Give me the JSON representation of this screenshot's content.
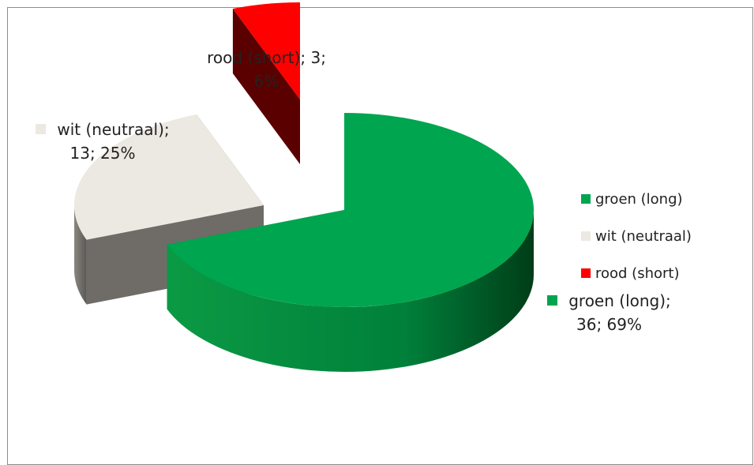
{
  "chart_data": {
    "type": "pie",
    "title": "",
    "three_d": true,
    "exploded": true,
    "legend_position": "right",
    "slices": [
      {
        "category": "groen (long)",
        "value": 36,
        "percent": 69,
        "color": "#00a54f",
        "label_lines": [
          "groen (long);",
          "36; 69%"
        ]
      },
      {
        "category": "wit (neutraal)",
        "value": 13,
        "percent": 25,
        "color": "#ece9e2",
        "label_lines": [
          "wit (neutraal);",
          "13; 25%"
        ]
      },
      {
        "category": "rood (short)",
        "value": 3,
        "percent": 6,
        "color": "#ff0000",
        "label_lines": [
          "rood (short); 3;",
          "6%"
        ]
      }
    ],
    "legend": [
      "groen (long)",
      "wit (neutraal)",
      "rood (short)"
    ]
  }
}
